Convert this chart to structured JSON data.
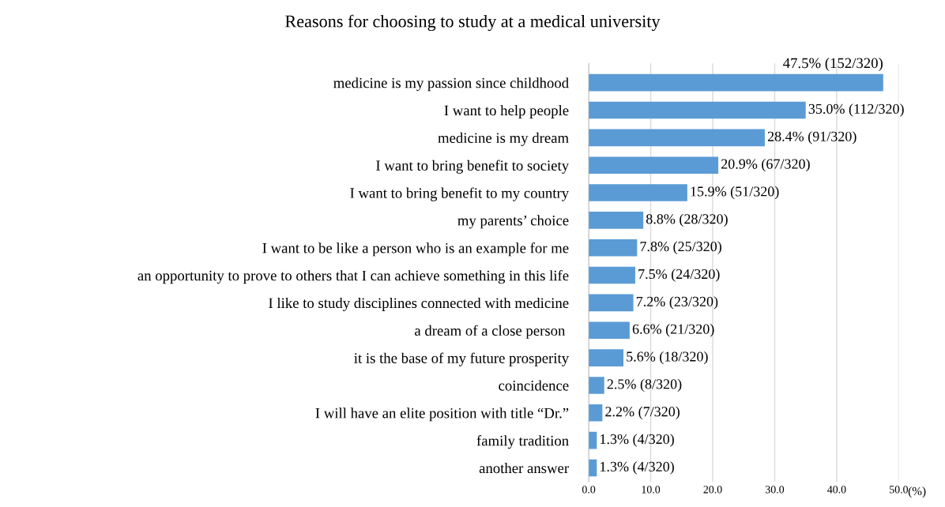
{
  "chart_data": {
    "type": "bar",
    "orientation": "horizontal",
    "title": "Reasons for choosing to study at a medical university",
    "xlabel": "(%)",
    "categories": [
      "medicine is my passion since childhood",
      "I want to help people",
      "medicine is my dream",
      "I want to bring benefit to society",
      "I want to bring benefit to my country",
      "my parents’ choice",
      "I want to be like a person who is an example for me",
      "an opportunity to prove to others that I can achieve something in this life",
      "I like to study disciplines connected with medicine",
      "a dream of a close person ",
      "it is the base of my future prosperity",
      "coincidence",
      "I will have an elite position with title “Dr.”",
      "family tradition",
      "another answer"
    ],
    "values": [
      47.5,
      35.0,
      28.4,
      20.9,
      15.9,
      8.8,
      7.8,
      7.5,
      7.2,
      6.6,
      5.6,
      2.5,
      2.2,
      1.3,
      1.3
    ],
    "value_labels": [
      "47.5% (152/320)",
      "35.0% (112/320)",
      "28.4% (91/320)",
      "20.9% (67/320)",
      "15.9% (51/320)",
      "8.8% (28/320)",
      "7.8% (25/320)",
      "7.5% (24/320)",
      "7.2% (23/320)",
      "6.6% (21/320)",
      "5.6% (18/320)",
      "2.5% (8/320)",
      "2.2% (7/320)",
      "1.3% (4/320)",
      "1.3% (4/320)"
    ],
    "color": "#5b9bd5",
    "xlim": [
      0,
      50
    ],
    "xticks": [
      {
        "value": 0,
        "label": "0.0"
      },
      {
        "value": 10,
        "label": "10.0"
      },
      {
        "value": 20,
        "label": "20.0"
      },
      {
        "value": 30,
        "label": "30.0"
      },
      {
        "value": 40,
        "label": "40.0"
      },
      {
        "value": 50,
        "label": "50.0"
      }
    ],
    "grid": "x"
  }
}
